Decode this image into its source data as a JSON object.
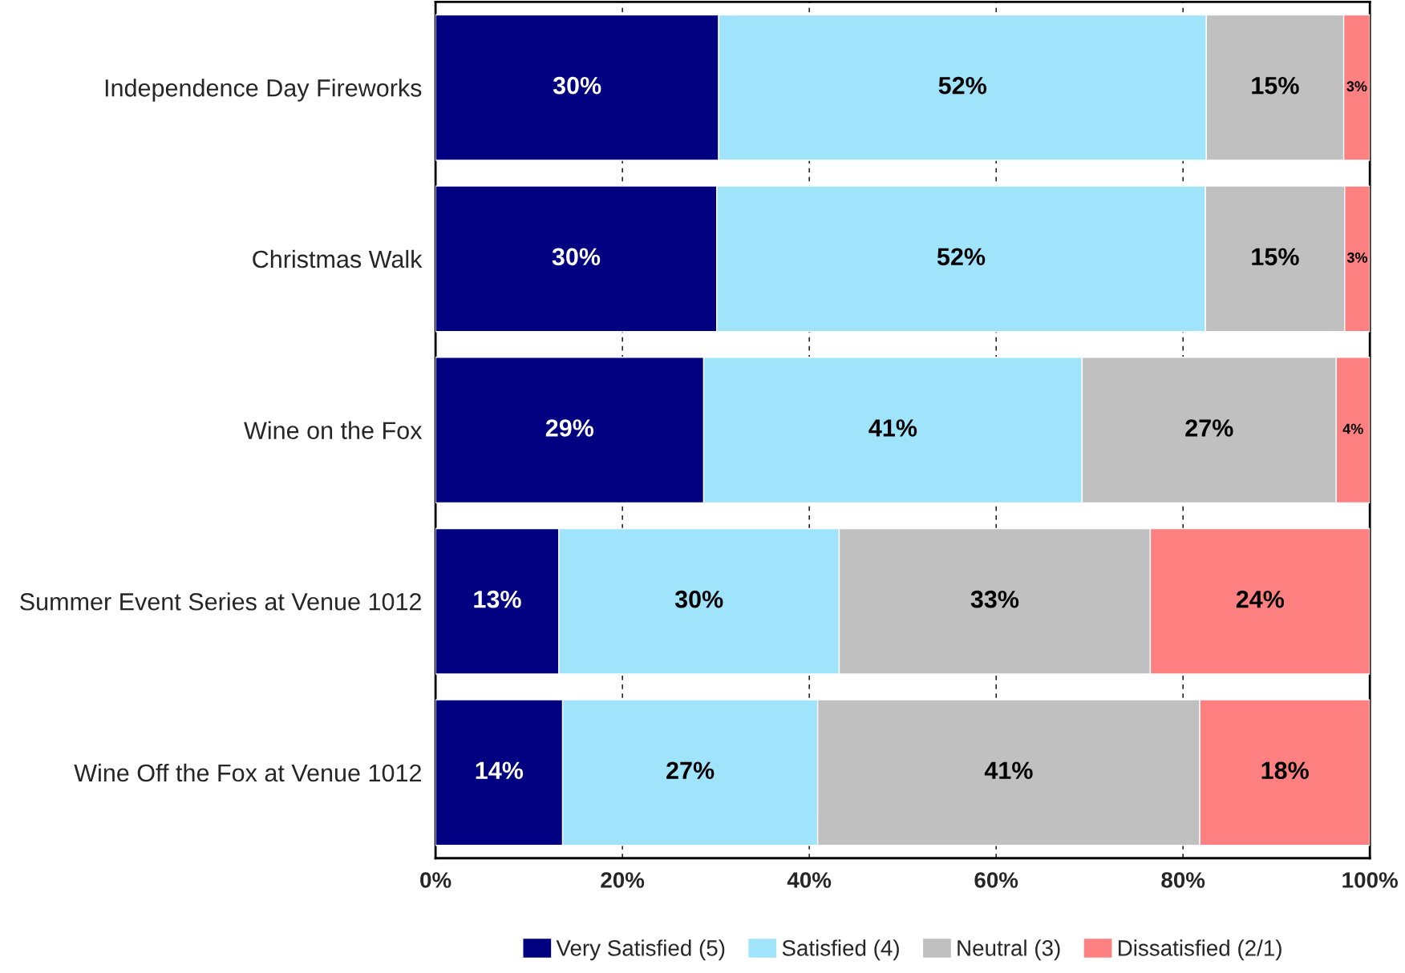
{
  "chart_data": {
    "type": "bar",
    "orientation": "horizontal",
    "stacked": true,
    "categories": [
      "Independence Day Fireworks",
      "Christmas Walk",
      "Wine on the Fox",
      "Summer Event Series at Venue 1012",
      "Wine Off the Fox at Venue 1012"
    ],
    "series": [
      {
        "name": "Very Satisfied (5)",
        "color": "#000080",
        "values": [
          30.3,
          30.1,
          28.7,
          13.2,
          13.6
        ],
        "value_labels": [
          "30%",
          "30%",
          "29%",
          "13%",
          "14%"
        ]
      },
      {
        "name": "Satisfied (4)",
        "color": "#a0e4fc",
        "values": [
          52.2,
          52.3,
          40.5,
          30.0,
          27.3
        ],
        "value_labels": [
          "52%",
          "52%",
          "41%",
          "30%",
          "27%"
        ]
      },
      {
        "name": "Neutral (3)",
        "color": "#c0c0c0",
        "values": [
          14.7,
          14.9,
          27.2,
          33.3,
          40.9
        ],
        "value_labels": [
          "15%",
          "15%",
          "27%",
          "33%",
          "41%"
        ]
      },
      {
        "name": "Dissatisfied (2/1)",
        "color": "#ff8080",
        "values": [
          2.8,
          2.7,
          3.6,
          23.5,
          18.2
        ],
        "value_labels": [
          "3%",
          "3%",
          "4%",
          "24%",
          "18%"
        ]
      }
    ],
    "xlim": [
      0,
      100
    ],
    "xticks": [
      {
        "value": 0,
        "label": "0%"
      },
      {
        "value": 20,
        "label": "20%"
      },
      {
        "value": 40,
        "label": "40%"
      },
      {
        "value": 60,
        "label": "60%"
      },
      {
        "value": 80,
        "label": "80%"
      },
      {
        "value": 100,
        "label": "100%"
      }
    ],
    "grid": "x",
    "legend": "bottom"
  }
}
